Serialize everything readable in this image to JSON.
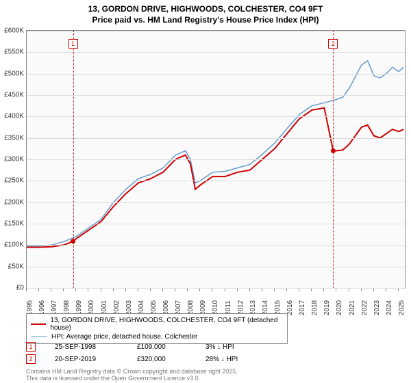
{
  "title_line1": "13, GORDON DRIVE, HIGHWOODS, COLCHESTER, CO4 9FT",
  "title_line2": "Price paid vs. HM Land Registry's House Price Index (HPI)",
  "chart": {
    "type": "line",
    "background_color": "#fafafa",
    "grid_color": "#dddddd",
    "border_color": "#888888",
    "ylim": [
      0,
      600000
    ],
    "ytick_step": 50000,
    "y_labels": [
      "£0",
      "£50K",
      "£100K",
      "£150K",
      "£200K",
      "£250K",
      "£300K",
      "£350K",
      "£400K",
      "£450K",
      "£500K",
      "£550K",
      "£600K"
    ],
    "x_start": 1995,
    "x_end": 2025.5,
    "x_labels": [
      "1995",
      "1996",
      "1997",
      "1998",
      "1999",
      "2000",
      "2001",
      "2002",
      "2003",
      "2004",
      "2005",
      "2006",
      "2007",
      "2008",
      "2009",
      "2010",
      "2011",
      "2012",
      "2013",
      "2014",
      "2015",
      "2016",
      "2017",
      "2018",
      "2019",
      "2020",
      "2021",
      "2022",
      "2023",
      "2024",
      "2025"
    ],
    "label_fontsize": 10,
    "series": [
      {
        "name": "price_paid",
        "color": "#cc0000",
        "width": 2,
        "points": [
          [
            1995,
            95000
          ],
          [
            1996,
            95000
          ],
          [
            1997,
            96000
          ],
          [
            1998,
            100000
          ],
          [
            1998.73,
            109000
          ],
          [
            1999,
            115000
          ],
          [
            2000,
            135000
          ],
          [
            2001,
            155000
          ],
          [
            2002,
            190000
          ],
          [
            2003,
            220000
          ],
          [
            2004,
            245000
          ],
          [
            2005,
            255000
          ],
          [
            2006,
            270000
          ],
          [
            2007,
            300000
          ],
          [
            2007.8,
            310000
          ],
          [
            2008.2,
            290000
          ],
          [
            2008.6,
            230000
          ],
          [
            2009,
            240000
          ],
          [
            2010,
            260000
          ],
          [
            2011,
            260000
          ],
          [
            2012,
            270000
          ],
          [
            2013,
            275000
          ],
          [
            2014,
            300000
          ],
          [
            2015,
            325000
          ],
          [
            2016,
            360000
          ],
          [
            2017,
            395000
          ],
          [
            2018,
            415000
          ],
          [
            2019,
            420000
          ],
          [
            2019.72,
            320000
          ],
          [
            2020,
            320000
          ],
          [
            2020.5,
            322000
          ],
          [
            2021,
            335000
          ],
          [
            2022,
            375000
          ],
          [
            2022.5,
            380000
          ],
          [
            2023,
            355000
          ],
          [
            2023.5,
            350000
          ],
          [
            2024,
            360000
          ],
          [
            2024.5,
            370000
          ],
          [
            2025,
            365000
          ],
          [
            2025.4,
            370000
          ]
        ]
      },
      {
        "name": "hpi",
        "color": "#6699cc",
        "width": 1.5,
        "points": [
          [
            1995,
            98000
          ],
          [
            1996,
            98000
          ],
          [
            1997,
            100000
          ],
          [
            1998,
            108000
          ],
          [
            1999,
            120000
          ],
          [
            2000,
            140000
          ],
          [
            2001,
            160000
          ],
          [
            2002,
            200000
          ],
          [
            2003,
            230000
          ],
          [
            2004,
            255000
          ],
          [
            2005,
            265000
          ],
          [
            2006,
            280000
          ],
          [
            2007,
            310000
          ],
          [
            2007.8,
            320000
          ],
          [
            2008.2,
            300000
          ],
          [
            2008.6,
            245000
          ],
          [
            2009,
            250000
          ],
          [
            2010,
            270000
          ],
          [
            2011,
            272000
          ],
          [
            2012,
            280000
          ],
          [
            2013,
            288000
          ],
          [
            2014,
            312000
          ],
          [
            2015,
            338000
          ],
          [
            2016,
            372000
          ],
          [
            2017,
            405000
          ],
          [
            2018,
            425000
          ],
          [
            2019,
            432000
          ],
          [
            2020,
            440000
          ],
          [
            2020.5,
            445000
          ],
          [
            2021,
            465000
          ],
          [
            2022,
            520000
          ],
          [
            2022.5,
            530000
          ],
          [
            2023,
            495000
          ],
          [
            2023.5,
            490000
          ],
          [
            2024,
            500000
          ],
          [
            2024.5,
            515000
          ],
          [
            2025,
            505000
          ],
          [
            2025.4,
            515000
          ]
        ]
      }
    ],
    "markers": [
      {
        "id": "1",
        "x": 1998.73,
        "y_box": 12
      },
      {
        "id": "2",
        "x": 2019.72,
        "y_box": 12
      }
    ],
    "sale_points": [
      {
        "x": 1998.73,
        "y": 109000
      },
      {
        "x": 2019.72,
        "y": 320000
      }
    ]
  },
  "legend": {
    "items": [
      {
        "color": "#cc0000",
        "width": 2,
        "label": "13, GORDON DRIVE, HIGHWOODS, COLCHESTER, CO4 9FT (detached house)"
      },
      {
        "color": "#6699cc",
        "width": 1.5,
        "label": "HPI: Average price, detached house, Colchester"
      }
    ]
  },
  "data_rows": [
    {
      "marker": "1",
      "date": "25-SEP-1998",
      "price": "£109,000",
      "pct": "3% ↓ HPI"
    },
    {
      "marker": "2",
      "date": "20-SEP-2019",
      "price": "£320,000",
      "pct": "28% ↓ HPI"
    }
  ],
  "footer": "Contains HM Land Registry data © Crown copyright and database right 2025.",
  "footer2": "This data is licensed under the Open Government Licence v3.0."
}
